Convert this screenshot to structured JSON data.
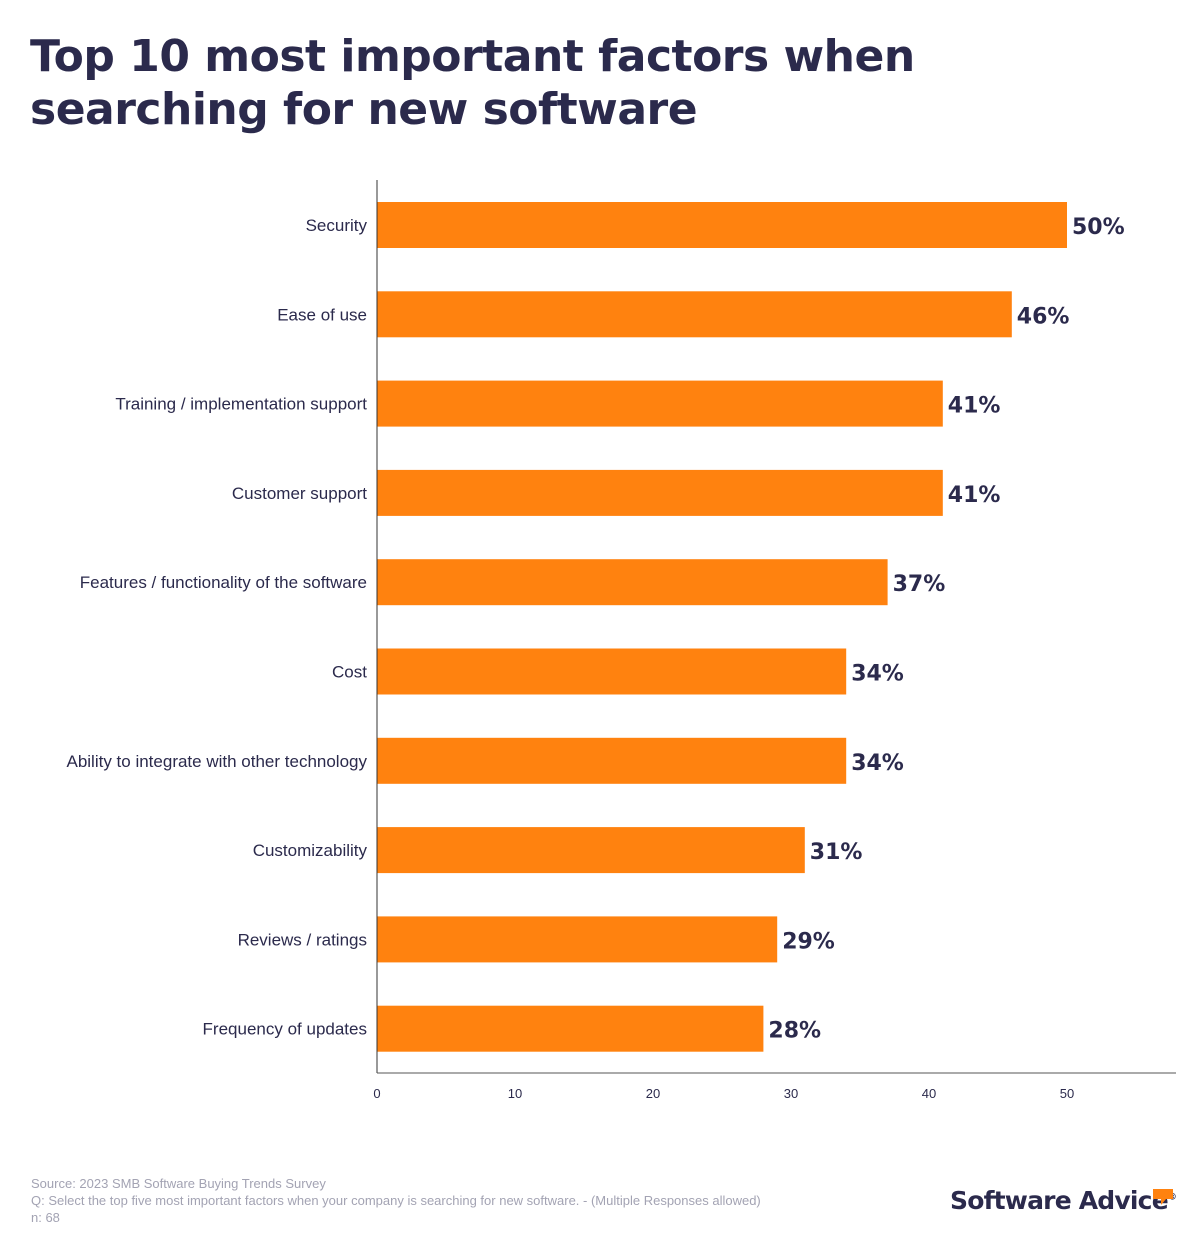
{
  "chart_data": {
    "type": "bar",
    "orientation": "horizontal",
    "title": "Top 10 most important factors when searching for new software",
    "categories": [
      "Security",
      "Ease of use",
      "Training / implementation support",
      "Customer support",
      "Features / functionality of the software",
      "Cost",
      "Ability to integrate with other technology",
      "Customizability",
      "Reviews / ratings",
      "Frequency of updates"
    ],
    "values": [
      50,
      46,
      41,
      41,
      37,
      34,
      34,
      31,
      29,
      28
    ],
    "value_labels": [
      "50%",
      "46%",
      "41%",
      "41%",
      "37%",
      "34%",
      "34%",
      "31%",
      "29%",
      "28%"
    ],
    "xticks": [
      0,
      10,
      20,
      30,
      40,
      50
    ],
    "xlim": [
      0,
      58
    ],
    "grid": false,
    "legend": "none",
    "bar_color": "#ff820f",
    "text_color": "#2b2a4c"
  },
  "footer": {
    "source": "Source: 2023 SMB Software Buying Trends Survey",
    "question": "Q: Select the top five most important factors when your company is searching for new software. - (Multiple Responses allowed)",
    "n": "n: 68"
  },
  "brand": {
    "name": "Software Advice",
    "registered": "®",
    "accent": "#ff820f"
  }
}
